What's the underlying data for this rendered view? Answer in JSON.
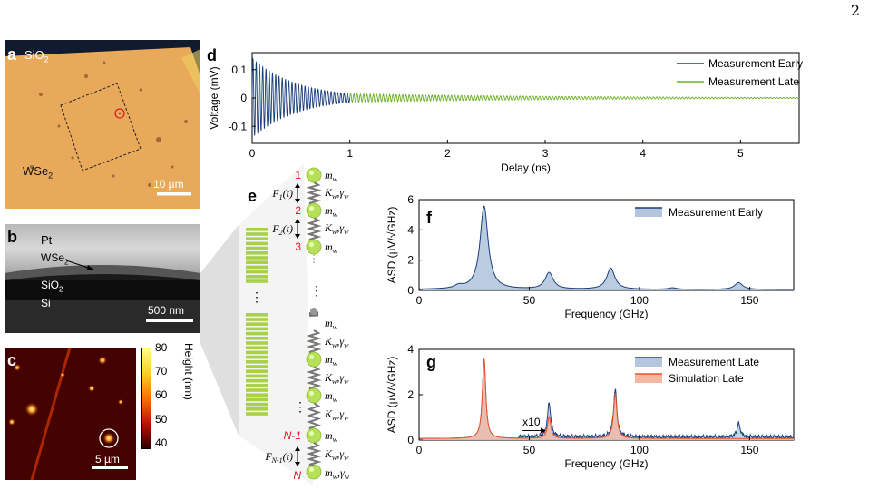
{
  "page_number": "2",
  "panels": {
    "a": {
      "letter": "a",
      "label_sio2": "SiO",
      "sub_2": "2",
      "label_wse2": "WSe",
      "scalebar": "10 µm"
    },
    "b": {
      "letter": "b",
      "label_pt": "Pt",
      "label_wse2": "WSe",
      "label_sio2": "SiO",
      "sub_2": "2",
      "label_si": "Si",
      "scalebar": "500 nm"
    },
    "c": {
      "letter": "c",
      "scalebar": "5 µm",
      "colorbar_label": "Height (nm)",
      "colorbar_ticks": [
        "80",
        "70",
        "60",
        "50",
        "40"
      ]
    },
    "d": {
      "letter": "d"
    },
    "e": {
      "letter": "e",
      "node_numbers": [
        "1",
        "2",
        "3",
        "N-1",
        "N"
      ],
      "ellipsis": "⋮"
    },
    "f": {
      "letter": "f"
    },
    "g": {
      "letter": "g",
      "annotation": "x10"
    }
  },
  "chart_data": [
    {
      "id": "d",
      "type": "line",
      "xlabel": "Delay (ns)",
      "ylabel": "Voltage (mV)",
      "xlim": [
        0,
        5.6
      ],
      "ylim": [
        -0.16,
        0.16
      ],
      "xticks": [
        "0",
        "1",
        "2",
        "3",
        "4",
        "5"
      ],
      "yticks": [
        "0.1",
        "0",
        "-0.1"
      ],
      "series": [
        {
          "name": "Measurement Early",
          "color": "#1a3e7a",
          "x_range": [
            0,
            1
          ],
          "amplitude_start": 0.14,
          "decay_ns": 0.45,
          "freq_ghz": 30
        },
        {
          "name": "Measurement Late",
          "color": "#6ab023",
          "x_range": [
            1,
            5.6
          ],
          "amplitude_start": 0.015,
          "decay_ns": 2.2,
          "freq_ghz": 30
        }
      ]
    },
    {
      "id": "f",
      "type": "area",
      "xlabel": "Frequency (GHz)",
      "ylabel": "ASD (µV/√GHz)",
      "xlim": [
        0,
        170
      ],
      "ylim": [
        0,
        6
      ],
      "xticks": [
        "0",
        "50",
        "100",
        "150"
      ],
      "yticks": [
        "6",
        "4",
        "2",
        "0"
      ],
      "series": [
        {
          "name": "Measurement Early",
          "color": "#1a3e7a",
          "peaks": [
            {
              "x": 18,
              "y": 0.2
            },
            {
              "x": 29.5,
              "y": 5.5
            },
            {
              "x": 59,
              "y": 1.1
            },
            {
              "x": 87,
              "y": 1.4
            },
            {
              "x": 115,
              "y": 0.1
            },
            {
              "x": 145,
              "y": 0.45
            }
          ]
        }
      ]
    },
    {
      "id": "g",
      "type": "area",
      "xlabel": "Frequency (GHz)",
      "ylabel": "ASD (µV/√GHz)",
      "xlim": [
        0,
        170
      ],
      "ylim": [
        0,
        4
      ],
      "xticks": [
        "0",
        "50",
        "100",
        "150"
      ],
      "yticks": [
        "4",
        "2",
        "0"
      ],
      "series": [
        {
          "name": "Measurement Late",
          "color": "#1a3e7a",
          "peaks": [
            {
              "x": 29.5,
              "y": 3.5
            },
            {
              "x": 59,
              "y": 1.5
            },
            {
              "x": 89,
              "y": 2.1
            },
            {
              "x": 145,
              "y": 0.6
            }
          ]
        },
        {
          "name": "Simulation Late",
          "color": "#e8532a",
          "peaks": [
            {
              "x": 29.5,
              "y": 3.55
            },
            {
              "x": 59,
              "y": 0.95
            },
            {
              "x": 89,
              "y": 2.0
            }
          ]
        }
      ]
    }
  ],
  "colors": {
    "film": "#e8a95a",
    "dark": "#111b2e",
    "green": "#a8d048",
    "blue": "#1a3e7a",
    "orange": "#e8532a",
    "red": "#e0141e"
  }
}
